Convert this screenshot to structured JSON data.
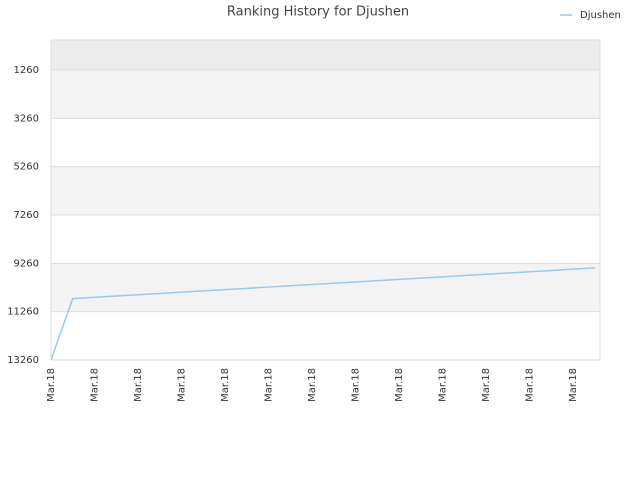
{
  "chart_data": {
    "type": "line",
    "title": "Ranking History for Djushen",
    "categories": [
      "Mar.18",
      null,
      "Mar.18",
      null,
      "Mar.18",
      null,
      "Mar.18",
      null,
      "Mar.18",
      null,
      "Mar.18",
      null,
      "Mar.18",
      null,
      "Mar.18",
      null,
      "Mar.18",
      null,
      "Mar.18",
      null,
      "Mar.18",
      null,
      "Mar.18",
      null,
      "Mar.18",
      null
    ],
    "series": [
      {
        "name": "Djushen",
        "color": "#99c9f0",
        "values": [
          13260,
          10720,
          10665,
          10612,
          10559,
          10506,
          10453,
          10400,
          10348,
          10295,
          10242,
          10189,
          10136,
          10083,
          10030,
          9978,
          9925,
          9872,
          9819,
          9766,
          9713,
          9660,
          9608,
          9555,
          9502,
          9449
        ]
      }
    ],
    "ylim": [
      13260,
      19
    ],
    "yticks": [
      13260,
      11260,
      9260,
      7260,
      5260,
      3260,
      1260
    ],
    "grid": true,
    "legend": "top-right"
  }
}
